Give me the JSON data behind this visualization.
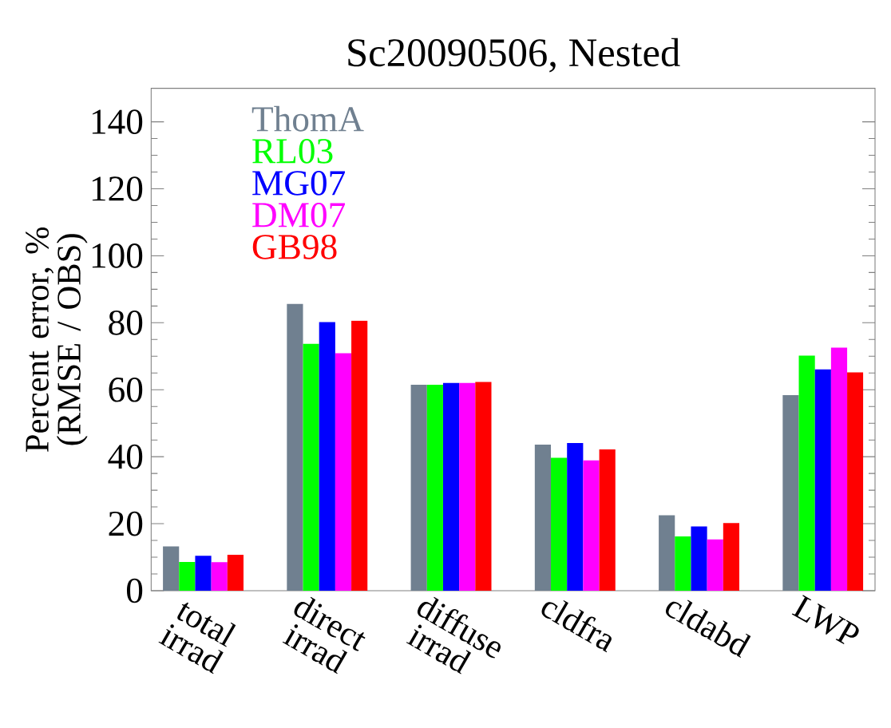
{
  "chart_data": {
    "type": "bar",
    "title": "Sc20090506, Nested",
    "ylabel": "Percent error, % (RMSE / OBS)",
    "categories": [
      "total irrad",
      "direct irrad",
      "diffuse irrad",
      "cldfra",
      "cldabd",
      "LWP"
    ],
    "series": [
      {
        "name": "ThomA",
        "color": "#708090",
        "values": [
          13.2,
          85.6,
          61.5,
          43.6,
          22.5,
          58.4
        ]
      },
      {
        "name": "RL03",
        "color": "#00ff00",
        "values": [
          8.6,
          73.7,
          61.5,
          39.7,
          16.2,
          70.2
        ]
      },
      {
        "name": "MG07",
        "color": "#0000ff",
        "values": [
          10.4,
          80.2,
          62,
          44.1,
          19.2,
          66.1
        ]
      },
      {
        "name": "DM07",
        "color": "#ff00ff",
        "values": [
          8.5,
          70.9,
          62,
          38.9,
          15.3,
          72.6
        ]
      },
      {
        "name": "GB98",
        "color": "#ff0000",
        "values": [
          10.7,
          80.6,
          62.3,
          42.2,
          20.2,
          65.2
        ]
      }
    ],
    "ylim": [
      0,
      150
    ],
    "yticks": [
      0,
      20,
      40,
      60,
      80,
      100,
      120,
      140
    ],
    "grid": false,
    "legend": "top left"
  }
}
